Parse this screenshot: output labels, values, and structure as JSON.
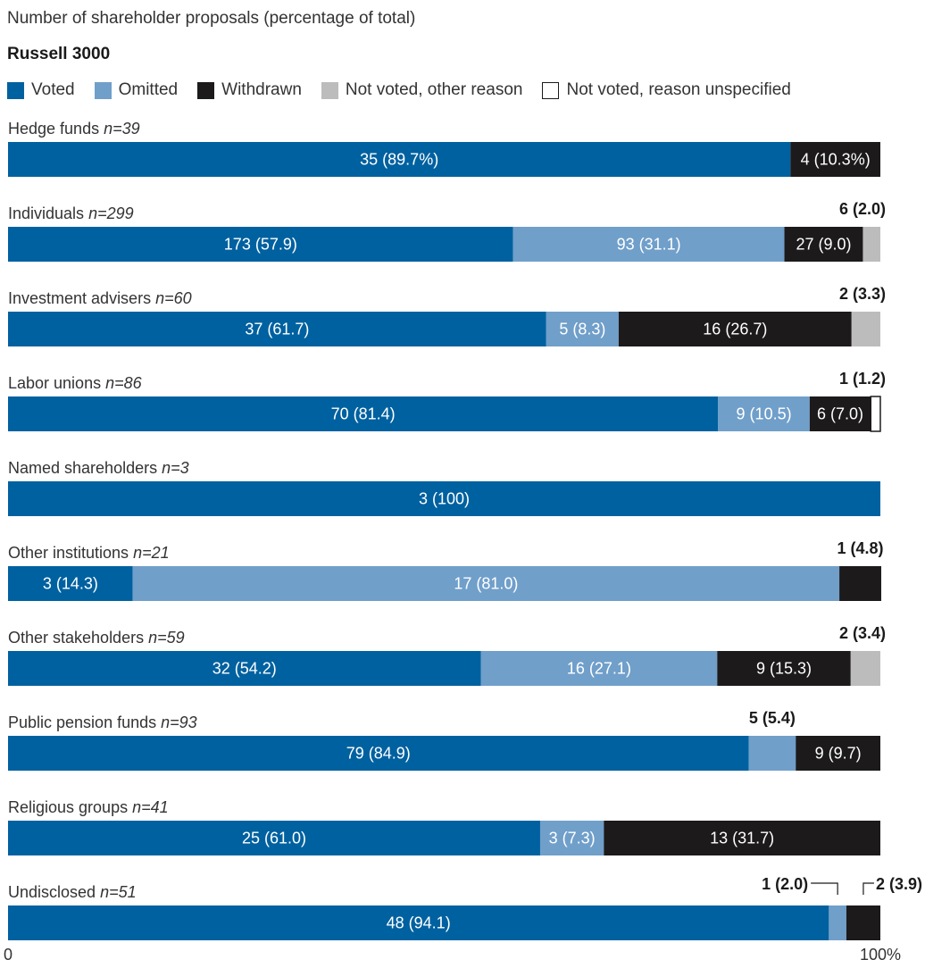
{
  "title": "Number of shareholder proposals (percentage of total)",
  "subtitle": "Russell 3000",
  "legend": [
    {
      "label": "Voted",
      "color": "#0061a0"
    },
    {
      "label": "Omitted",
      "color": "#709fca"
    },
    {
      "label": "Withdrawn",
      "color": "#1c1a1b"
    },
    {
      "label": "Not voted, other reason",
      "color": "#bcbcbc"
    },
    {
      "label": "Not voted, reason unspecified",
      "color": "#ffffff"
    }
  ],
  "chart_data": {
    "type": "bar",
    "orientation": "horizontal-stacked-100",
    "title": "Number of shareholder proposals (percentage of total)",
    "subtitle": "Russell 3000",
    "xlim": [
      0,
      100
    ],
    "x_tick_labels": [
      "0",
      "100%"
    ],
    "series_names": [
      "Voted",
      "Omitted",
      "Withdrawn",
      "Not voted, other reason",
      "Not voted, reason unspecified"
    ],
    "series_colors": [
      "#0061a0",
      "#709fca",
      "#1c1a1b",
      "#bcbcbc",
      "#ffffff"
    ],
    "categories": [
      {
        "name": "Hedge funds",
        "n": "n=39",
        "values": [
          89.7,
          0,
          10.3,
          0,
          0
        ],
        "labels": [
          "35 (89.7%)",
          "",
          "4 (10.3%)",
          "",
          ""
        ],
        "outside": []
      },
      {
        "name": "Individuals",
        "n": "n=299",
        "values": [
          57.9,
          31.1,
          9.0,
          2.0,
          0
        ],
        "labels": [
          "173 (57.9)",
          "93 (31.1)",
          "27 (9.0)",
          "",
          ""
        ],
        "outside": [
          {
            "text": "6 (2.0)",
            "segment": 3
          }
        ]
      },
      {
        "name": "Investment advisers",
        "n": "n=60",
        "values": [
          61.7,
          8.3,
          26.7,
          3.3,
          0
        ],
        "labels": [
          "37 (61.7)",
          "5 (8.3)",
          "16 (26.7)",
          "",
          ""
        ],
        "outside": [
          {
            "text": "2 (3.3)",
            "segment": 3
          }
        ]
      },
      {
        "name": "Labor unions",
        "n": "n=86",
        "values": [
          81.4,
          10.5,
          7.0,
          0,
          1.2
        ],
        "labels": [
          "70 (81.4)",
          "9 (10.5)",
          "6 (7.0)",
          "",
          ""
        ],
        "outside": [
          {
            "text": "1 (1.2)",
            "segment": 4
          }
        ]
      },
      {
        "name": "Named shareholders",
        "n": "n=3",
        "values": [
          100,
          0,
          0,
          0,
          0
        ],
        "labels": [
          "3 (100)",
          "",
          "",
          "",
          ""
        ],
        "outside": []
      },
      {
        "name": "Other institutions",
        "n": "n=21",
        "values": [
          14.3,
          81.0,
          4.8,
          0,
          0
        ],
        "labels": [
          "3 (14.3)",
          "17 (81.0)",
          "",
          "",
          ""
        ],
        "outside": [
          {
            "text": "1 (4.8)",
            "segment": 2
          }
        ]
      },
      {
        "name": "Other stakeholders",
        "n": "n=59",
        "values": [
          54.2,
          27.1,
          15.3,
          3.4,
          0
        ],
        "labels": [
          "32 (54.2)",
          "16 (27.1)",
          "9 (15.3)",
          "",
          ""
        ],
        "outside": [
          {
            "text": "2 (3.4)",
            "segment": 3
          }
        ]
      },
      {
        "name": "Public pension funds",
        "n": "n=93",
        "values": [
          84.9,
          5.4,
          9.7,
          0,
          0
        ],
        "labels": [
          "79 (84.9)",
          "",
          "9 (9.7)",
          "",
          ""
        ],
        "outside": [
          {
            "text": "5 (5.4)",
            "segment": 1
          }
        ]
      },
      {
        "name": "Religious groups",
        "n": "n=41",
        "values": [
          61.0,
          7.3,
          31.7,
          0,
          0
        ],
        "labels": [
          "25 (61.0)",
          "3 (7.3)",
          "13 (31.7)",
          "",
          ""
        ],
        "outside": []
      },
      {
        "name": "Undisclosed",
        "n": "n=51",
        "values": [
          94.1,
          2.0,
          3.9,
          0,
          0
        ],
        "labels": [
          "48 (94.1)",
          "",
          "",
          "",
          ""
        ],
        "outside": [
          {
            "text": "1 (2.0)",
            "segment": 1,
            "bracket": "left"
          },
          {
            "text": "2 (3.9)",
            "segment": 2,
            "bracket": "right"
          }
        ]
      }
    ]
  }
}
